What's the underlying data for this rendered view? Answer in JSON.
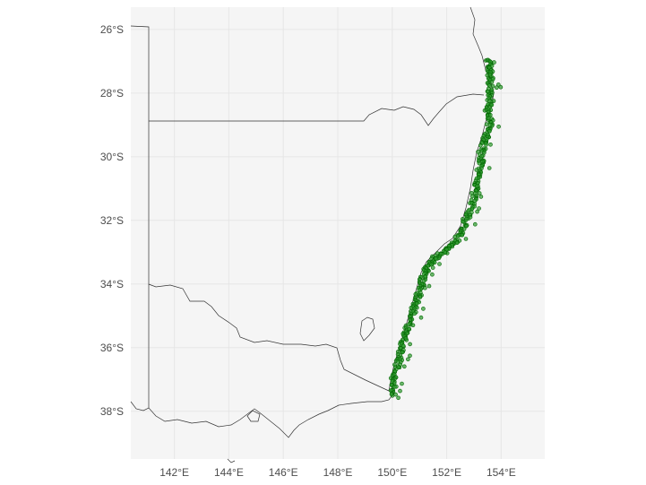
{
  "map": {
    "colors": {
      "panel_bg": "#f5f5f5",
      "grid": "#e6e6e6",
      "outline": "#333333",
      "point_fill": "#2e9b2e",
      "point_stroke": "#006400"
    },
    "lon_range": [
      140.4,
      155.6
    ],
    "lat_range": [
      -39.5,
      -25.3
    ],
    "x_ticks": [
      {
        "value": 142,
        "label": "142°E"
      },
      {
        "value": 144,
        "label": "144°E"
      },
      {
        "value": 146,
        "label": "146°E"
      },
      {
        "value": 148,
        "label": "148°E"
      },
      {
        "value": 150,
        "label": "150°E"
      },
      {
        "value": 152,
        "label": "152°E"
      },
      {
        "value": 154,
        "label": "154°E"
      }
    ],
    "y_ticks": [
      {
        "value": -26,
        "label": "26°S"
      },
      {
        "value": -28,
        "label": "28°S"
      },
      {
        "value": -30,
        "label": "30°S"
      },
      {
        "value": -32,
        "label": "32°S"
      },
      {
        "value": -34,
        "label": "34°S"
      },
      {
        "value": -36,
        "label": "36°S"
      },
      {
        "value": -38,
        "label": "38°S"
      }
    ],
    "point_track": [
      [
        153.55,
        -26.95
      ],
      [
        153.62,
        -27.5
      ],
      [
        153.55,
        -28.2
      ],
      [
        153.6,
        -28.9
      ],
      [
        153.4,
        -29.5
      ],
      [
        153.25,
        -30.2
      ],
      [
        153.1,
        -30.9
      ],
      [
        152.9,
        -31.6
      ],
      [
        152.6,
        -32.3
      ],
      [
        152.2,
        -32.8
      ],
      [
        151.6,
        -33.2
      ],
      [
        151.2,
        -33.6
      ],
      [
        151.0,
        -34.2
      ],
      [
        150.8,
        -34.8
      ],
      [
        150.5,
        -35.5
      ],
      [
        150.3,
        -36.2
      ],
      [
        150.1,
        -36.9
      ],
      [
        150.0,
        -37.55
      ]
    ]
  }
}
